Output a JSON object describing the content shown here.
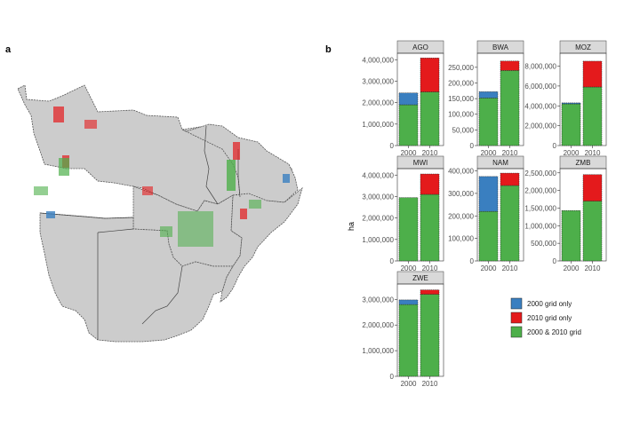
{
  "panels": {
    "a": "a",
    "b": "b"
  },
  "colors": {
    "grid_2000_only": "#3a7fc0",
    "grid_2010_only": "#e41a1c",
    "both": "#4daf4a",
    "land": "#cccccc",
    "border": "#555555"
  },
  "chart_data": {
    "type": "bar",
    "stacked": true,
    "ylabel": "ha",
    "categories": [
      "2000",
      "2010"
    ],
    "legend": {
      "placement": "bottom-right",
      "entries": [
        "2000 grid only",
        "2010 grid only",
        "2000 & 2010 grid"
      ]
    },
    "facets": [
      {
        "name": "AGO",
        "ymax": 4300000,
        "ticks": [
          0,
          1000000,
          2000000,
          3000000,
          4000000
        ],
        "tick_labels": [
          "0",
          "1,000,000",
          "2,000,000",
          "3,000,000",
          "4,000,000"
        ],
        "both": [
          1900000,
          2500000
        ],
        "only2000": [
          550000,
          0
        ],
        "only2010": [
          0,
          1580000
        ]
      },
      {
        "name": "BWA",
        "ymax": 295000,
        "ticks": [
          0,
          50000,
          100000,
          150000,
          200000,
          250000
        ],
        "tick_labels": [
          "0",
          "50,000",
          "100,000",
          "150,000",
          "200,000",
          "250,000"
        ],
        "both": [
          152000,
          240000
        ],
        "only2000": [
          20000,
          0
        ],
        "only2010": [
          0,
          30000
        ]
      },
      {
        "name": "MOZ",
        "ymax": 9300000,
        "ticks": [
          0,
          2000000,
          4000000,
          6000000,
          8000000
        ],
        "tick_labels": [
          "0",
          "2,000,000",
          "4,000,000",
          "6,000,000",
          "8,000,000"
        ],
        "both": [
          4200000,
          5900000
        ],
        "only2000": [
          100000,
          0
        ],
        "only2010": [
          0,
          2600000
        ]
      },
      {
        "name": "MWI",
        "ymax": 4300000,
        "ticks": [
          0,
          1000000,
          2000000,
          3000000,
          4000000
        ],
        "tick_labels": [
          "0",
          "1,000,000",
          "2,000,000",
          "3,000,000",
          "4,000,000"
        ],
        "both": [
          2950000,
          3100000
        ],
        "only2000": [
          0,
          0
        ],
        "only2010": [
          0,
          950000
        ]
      },
      {
        "name": "NAM",
        "ymax": 410000,
        "ticks": [
          0,
          100000,
          200000,
          300000,
          400000
        ],
        "tick_labels": [
          "0",
          "100,000",
          "200,000",
          "300,000",
          "400,000"
        ],
        "both": [
          220000,
          335000
        ],
        "only2000": [
          155000,
          0
        ],
        "only2010": [
          0,
          55000
        ]
      },
      {
        "name": "ZMB",
        "ymax": 2620000,
        "ticks": [
          0,
          500000,
          1000000,
          1500000,
          2000000,
          2500000
        ],
        "tick_labels": [
          "0",
          "500,000",
          "1,000,000",
          "1,500,000",
          "2,000,000",
          "2,500,000"
        ],
        "both": [
          1430000,
          1700000
        ],
        "only2000": [
          0,
          0
        ],
        "only2010": [
          0,
          750000
        ]
      },
      {
        "name": "ZWE",
        "ymax": 3600000,
        "ticks": [
          0,
          1000000,
          2000000,
          3000000
        ],
        "tick_labels": [
          "0",
          "1,000,000",
          "2,000,000",
          "3,000,000"
        ],
        "both": [
          2800000,
          3200000
        ],
        "only2000": [
          180000,
          0
        ],
        "only2010": [
          0,
          170000
        ]
      }
    ]
  }
}
